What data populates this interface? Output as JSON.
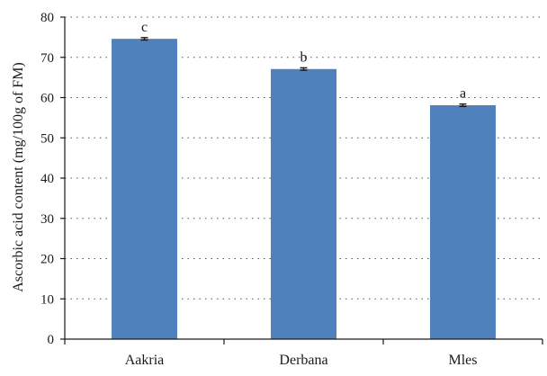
{
  "chart_data": {
    "type": "bar",
    "categories": [
      "Aakria",
      "Derbana",
      "Mles"
    ],
    "values": [
      74.6,
      67.1,
      58.1
    ],
    "errors": [
      0.3,
      0.3,
      0.3
    ],
    "significance_labels": [
      "c",
      "b",
      "a"
    ],
    "title": "",
    "xlabel": "",
    "ylabel": "Ascorbic acid content (mg/100g of FM)",
    "ylim": [
      0,
      80
    ],
    "yticks": [
      0,
      10,
      20,
      30,
      40,
      50,
      60,
      70,
      80
    ],
    "grid": true,
    "bar_color": "#4f81bd"
  }
}
